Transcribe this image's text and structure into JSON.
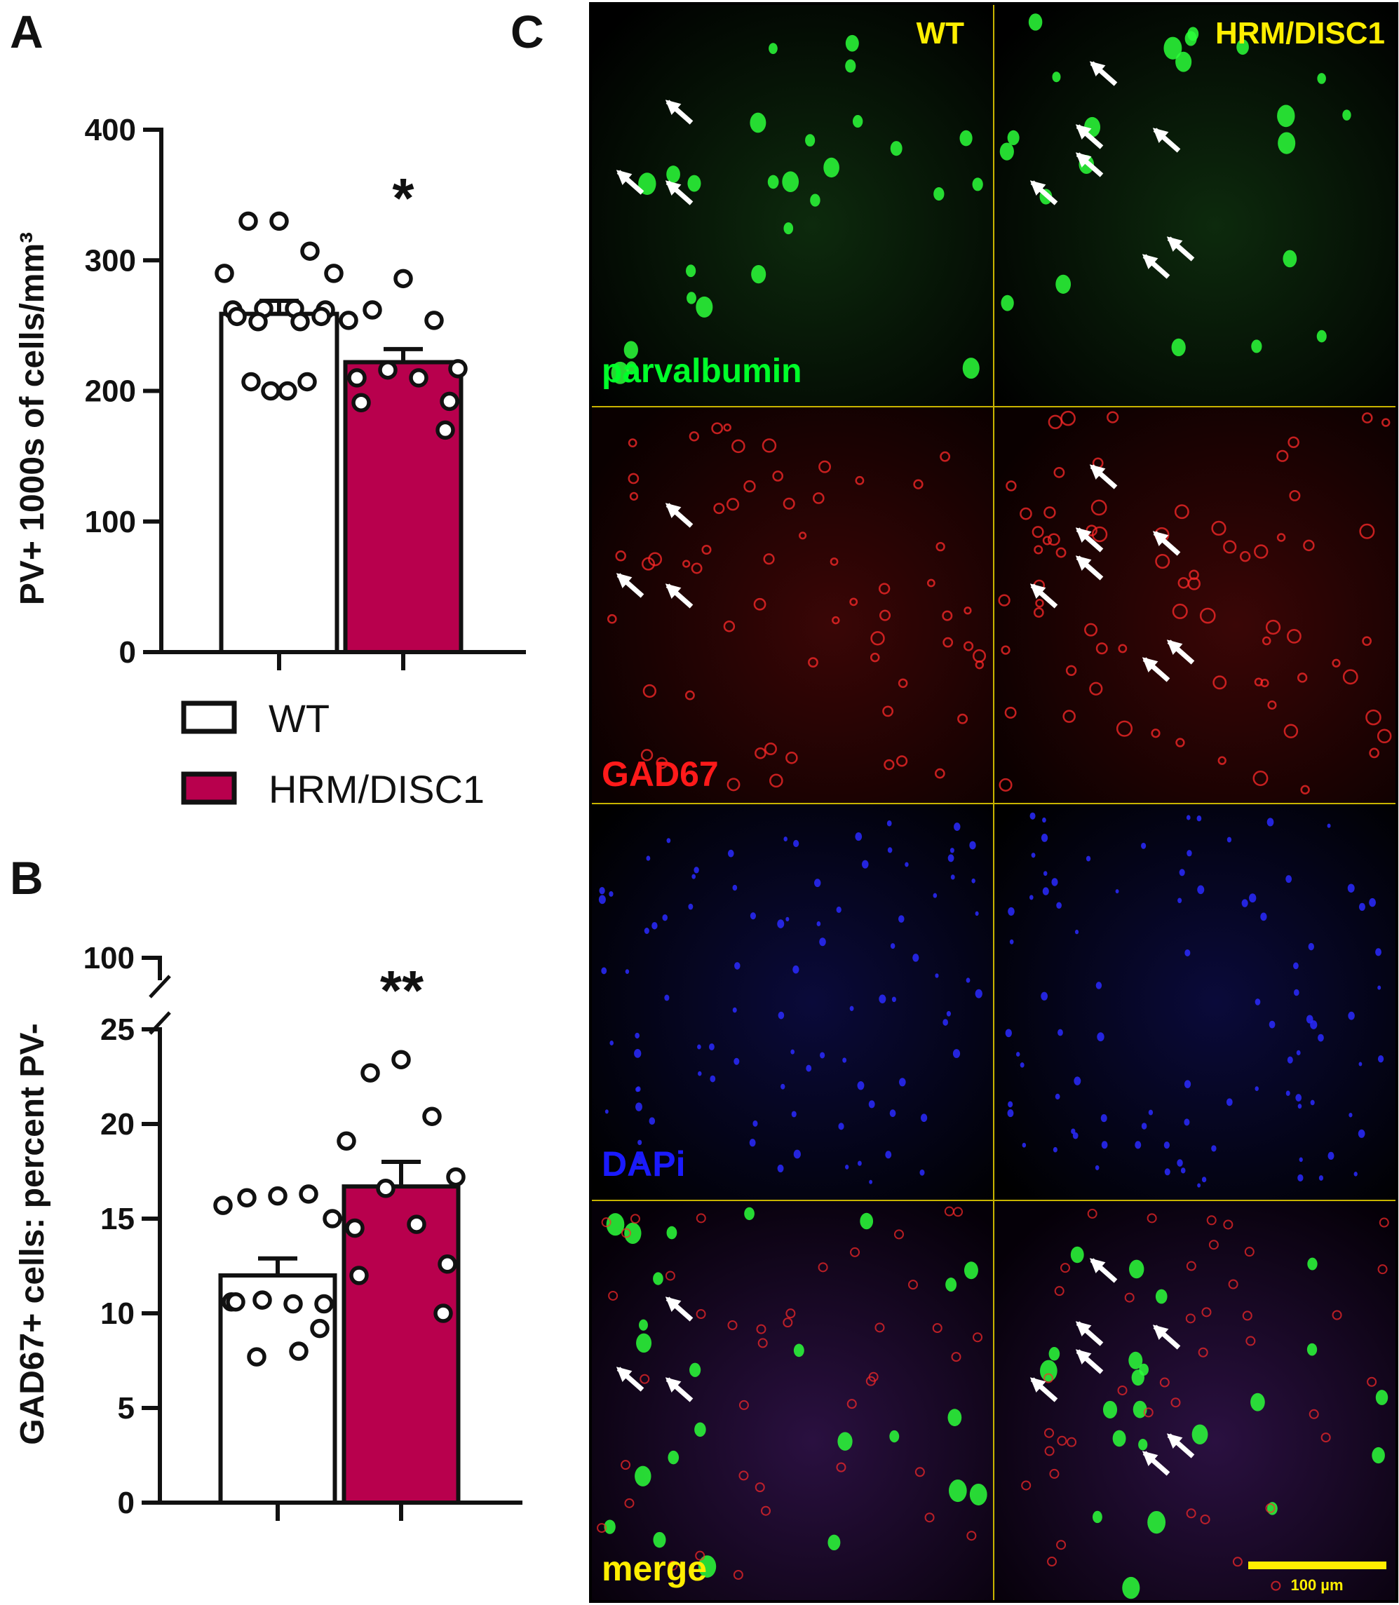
{
  "panels": {
    "A": "A",
    "B": "B",
    "C": "C"
  },
  "colors": {
    "wt": "#ffffff",
    "hrm": "#b8004d",
    "axis": "#111111",
    "yellow": "#ffee00",
    "green": "#00ff2a",
    "red": "#ff1a1a",
    "blue": "#1a1aff"
  },
  "legend": {
    "wt": "WT",
    "hrm": "HRM/DISC1"
  },
  "chart_data": [
    {
      "type": "bar",
      "panel": "A",
      "ylabel": "PV+ 1000s of cells/mm³",
      "ylim": [
        0,
        400
      ],
      "yticks": [
        "0",
        "100",
        "200",
        "300",
        "400"
      ],
      "categories": [
        "WT",
        "HRM/DISC1"
      ],
      "values": [
        259,
        222
      ],
      "errors": [
        10,
        10
      ],
      "significance": "*",
      "points": [
        [
          330,
          330,
          307,
          290,
          290,
          263,
          263,
          262,
          262,
          257,
          257,
          253,
          253,
          207,
          207,
          200,
          200
        ],
        [
          286,
          262,
          254,
          254,
          217,
          216,
          210,
          210,
          192,
          191,
          170
        ]
      ]
    },
    {
      "type": "bar",
      "panel": "B",
      "ylabel": "GAD67+ cells: percent PV-",
      "ylim": [
        0,
        25
      ],
      "axis_break": true,
      "yticks": [
        "0",
        "5",
        "10",
        "15",
        "20",
        "25",
        "100"
      ],
      "categories": [
        "WT",
        "HRM/DISC1"
      ],
      "values": [
        12.0,
        16.7
      ],
      "errors": [
        0.9,
        1.3
      ],
      "significance": "**",
      "points": [
        [
          16.2,
          16.1,
          16.3,
          15.7,
          15.0,
          10.7,
          10.5,
          10.6,
          10.5,
          10.6,
          9.2,
          7.7,
          8.0
        ],
        [
          23.4,
          22.7,
          20.4,
          19.1,
          17.2,
          16.6,
          14.7,
          14.5,
          12.6,
          12.0,
          10.0
        ]
      ]
    }
  ],
  "micrograph": {
    "columns": [
      "WT",
      "HRM/DISC1"
    ],
    "rows": [
      "parvalbumin",
      "GAD67",
      "DAPi",
      "merge"
    ],
    "scale_bar": "100 µm"
  }
}
